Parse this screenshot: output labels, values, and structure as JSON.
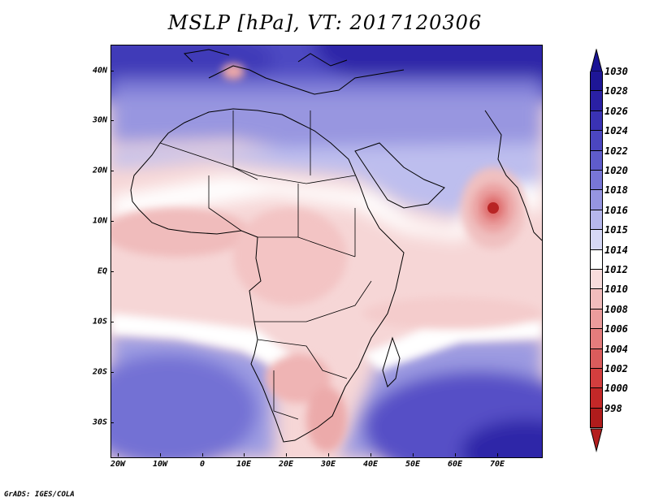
{
  "title": "MSLP [hPa], VT: 2017120306",
  "credit": "GrADS: IGES/COLA",
  "lat_labels": [
    "40N",
    "30N",
    "20N",
    "10N",
    "EQ",
    "10S",
    "20S",
    "30S"
  ],
  "lon_labels": [
    "20W",
    "10W",
    "0",
    "10E",
    "20E",
    "30E",
    "40E",
    "50E",
    "60E",
    "70E"
  ],
  "legend": {
    "top_arrow_color": "#1a1496",
    "bottom_arrow_color": "#b41e1e",
    "levels": [
      {
        "label": "1030",
        "color": "#1e1696"
      },
      {
        "label": "1028",
        "color": "#2a20a4"
      },
      {
        "label": "1026",
        "color": "#3a32b4"
      },
      {
        "label": "1024",
        "color": "#4b46c0"
      },
      {
        "label": "1022",
        "color": "#5f5ccb"
      },
      {
        "label": "1020",
        "color": "#7876d6"
      },
      {
        "label": "1018",
        "color": "#9695e1"
      },
      {
        "label": "1016",
        "color": "#b6b7ec"
      },
      {
        "label": "1015",
        "color": "#d6d8f6"
      },
      {
        "label": "1014",
        "color": "#ffffff"
      },
      {
        "label": "1012",
        "color": "#f8dcdc"
      },
      {
        "label": "1010",
        "color": "#f2bcbc"
      },
      {
        "label": "1008",
        "color": "#eb9c9c"
      },
      {
        "label": "1006",
        "color": "#e47c7c"
      },
      {
        "label": "1004",
        "color": "#db5c5c"
      },
      {
        "label": "1002",
        "color": "#d33e3e"
      },
      {
        "label": "1000",
        "color": "#c42828"
      },
      {
        "label": "998",
        "color": "#b01c1c"
      }
    ]
  }
}
